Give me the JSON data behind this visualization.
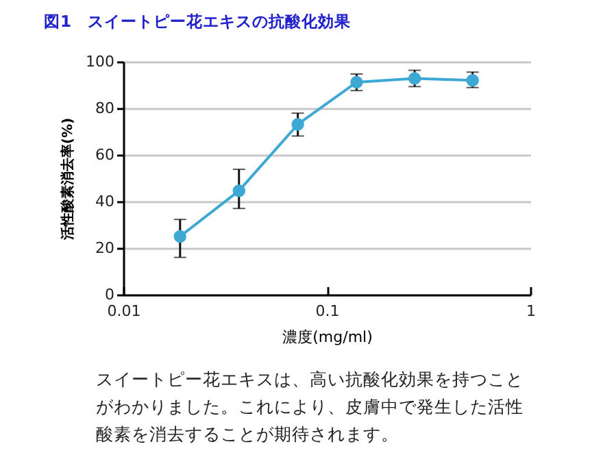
{
  "chart_data": {
    "type": "line",
    "title": "図1　スイートピー花エキスの抗酸化効果",
    "xlabel": "濃度(mg/ml)",
    "ylabel": "活性酸素消去率(%)",
    "x": [
      0.019,
      0.037,
      0.072,
      0.14,
      0.27,
      0.52
    ],
    "series": [
      {
        "color": "#3ea8d4",
        "values": [
          25,
          44.6,
          73.1,
          91.2,
          92.8,
          92
        ],
        "errors": [
          [
            16,
            32.3
          ],
          [
            37,
            53.8
          ],
          [
            68.1,
            77.9
          ],
          [
            87.6,
            94.7
          ],
          [
            89.3,
            96.3
          ],
          [
            88.9,
            95.5
          ]
        ]
      }
    ],
    "log": "x",
    "xlim": [
      0.01,
      1
    ],
    "xticks": [
      0.01,
      0.1,
      1
    ],
    "ylim": [
      0,
      100
    ],
    "yticks": [
      0,
      20,
      40,
      60,
      80,
      100
    ],
    "grid": "y",
    "marker": "circle",
    "line_style": "solid",
    "annotations": [
      "スイートピー花エキスは、高い抗酸化効果を持つことがわかりました。これにより、皮膚中で発生した活性酸素を消去することが期待されます。"
    ]
  }
}
